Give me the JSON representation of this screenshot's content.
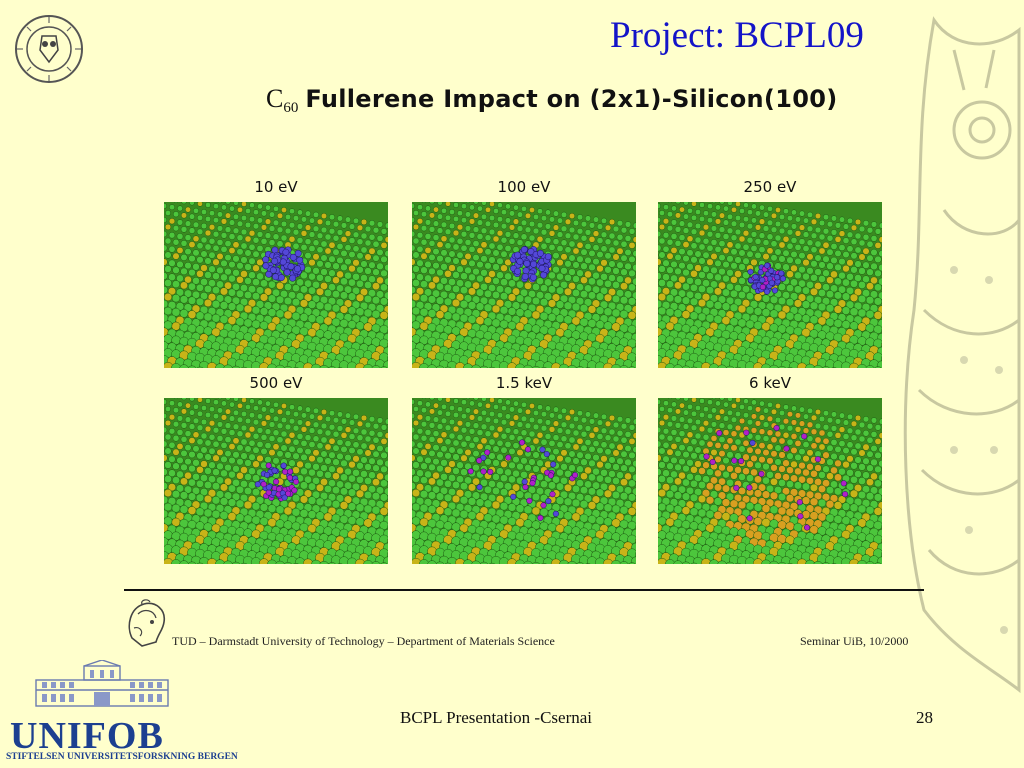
{
  "slide": {
    "title": "Project:  BCPL09",
    "heading": {
      "symbol": "C",
      "subscript": "60",
      "text": "Fullerene Impact on (2x1)-Silicon(100)"
    },
    "panels": [
      {
        "label": "10 eV",
        "state": "intact"
      },
      {
        "label": "100 eV",
        "state": "intact"
      },
      {
        "label": "250 eV",
        "state": "compressed"
      },
      {
        "label": "500 eV",
        "state": "fragmented"
      },
      {
        "label": "1.5 keV",
        "state": "scattered"
      },
      {
        "label": "6 keV",
        "state": "crater"
      }
    ],
    "footer": {
      "left": "TUD – Darmstadt University of Technology – Department of Materials Science",
      "right": "Seminar UiB, 10/2000"
    },
    "unifob": {
      "name": "UNIFOB",
      "subtitle": "STIFTELSEN UNIVERSITETSFORSKNING BERGEN"
    },
    "presenter": "BCPL Presentation -Csernai",
    "page_number": "28"
  },
  "colors": {
    "title": "#1414c8",
    "background": "#ffffcc",
    "silicon_green": "#4cc63c",
    "silicon_yellow": "#c8b418",
    "carbon_blue": "#5448d8",
    "unifob_blue": "#1c3f90"
  },
  "icons": {
    "university_seal": "university-of-bergen-seal-icon",
    "tud_seal": "tud-athena-seal-icon",
    "unifob_building": "unifob-building-icon",
    "owl": "owl-watermark-icon"
  }
}
